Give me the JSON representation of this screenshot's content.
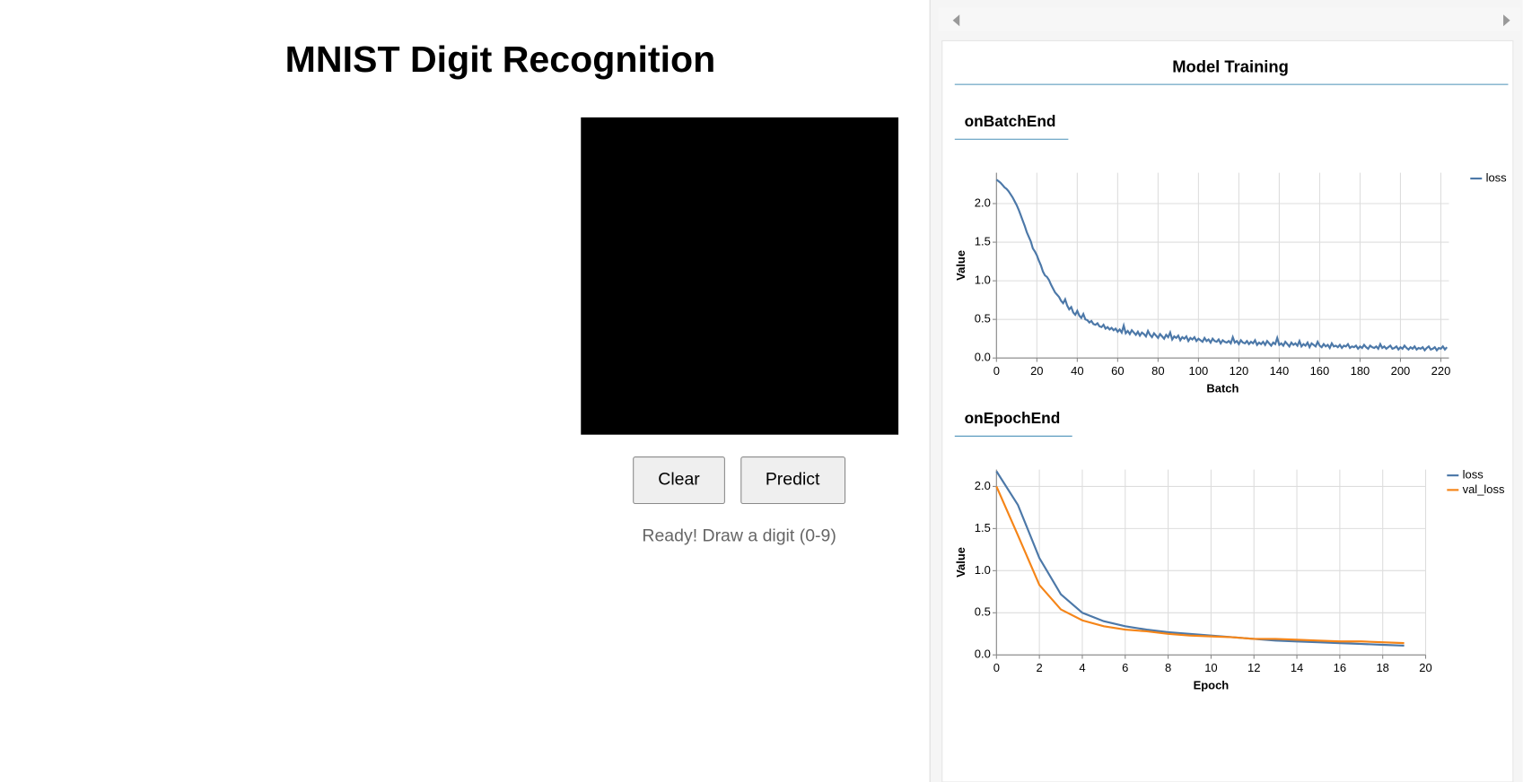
{
  "app": {
    "title": "MNIST Digit Recognition",
    "buttons": [
      "Clear",
      "Predict"
    ],
    "status": "Ready! Draw a digit (0-9)"
  },
  "panel": {
    "title": "Model Training",
    "tabs": [
      "onBatchEnd",
      "onEpochEnd"
    ]
  },
  "chart_data": [
    {
      "type": "line",
      "x_label": "Batch",
      "y_label": "Value",
      "xlim": [
        0,
        224
      ],
      "xticks": [
        0,
        20,
        40,
        60,
        80,
        100,
        120,
        140,
        160,
        180,
        200,
        220
      ],
      "ylim": [
        0,
        2.4
      ],
      "yticks": [
        {
          "value": 0,
          "label": "0.0"
        },
        {
          "value": 0.5,
          "label": "0.5"
        },
        {
          "value": 1,
          "label": "1.0"
        },
        {
          "value": 1.5,
          "label": "1.5"
        },
        {
          "value": 2,
          "label": "2.0"
        }
      ],
      "grid": true,
      "x": [
        0,
        1,
        2,
        3,
        4,
        5,
        6,
        7,
        8,
        9,
        10,
        11,
        12,
        13,
        14,
        15,
        16,
        17,
        18,
        19,
        20,
        21,
        22,
        23,
        24,
        25,
        26,
        27,
        28,
        29,
        30,
        31,
        32,
        33,
        34,
        35,
        36,
        37,
        38,
        39,
        40,
        41,
        42,
        43,
        44,
        45,
        46,
        47,
        48,
        49,
        50,
        51,
        52,
        53,
        54,
        55,
        56,
        57,
        58,
        59,
        60,
        61,
        62,
        63,
        64,
        65,
        66,
        67,
        68,
        69,
        70,
        71,
        72,
        73,
        74,
        75,
        76,
        77,
        78,
        79,
        80,
        81,
        82,
        83,
        84,
        85,
        86,
        87,
        88,
        89,
        90,
        91,
        92,
        93,
        94,
        95,
        96,
        97,
        98,
        99,
        100,
        101,
        102,
        103,
        104,
        105,
        106,
        107,
        108,
        109,
        110,
        111,
        112,
        113,
        114,
        115,
        116,
        117,
        118,
        119,
        120,
        121,
        122,
        123,
        124,
        125,
        126,
        127,
        128,
        129,
        130,
        131,
        132,
        133,
        134,
        135,
        136,
        137,
        138,
        139,
        140,
        141,
        142,
        143,
        144,
        145,
        146,
        147,
        148,
        149,
        150,
        151,
        152,
        153,
        154,
        155,
        156,
        157,
        158,
        159,
        160,
        161,
        162,
        163,
        164,
        165,
        166,
        167,
        168,
        169,
        170,
        171,
        172,
        173,
        174,
        175,
        176,
        177,
        178,
        179,
        180,
        181,
        182,
        183,
        184,
        185,
        186,
        187,
        188,
        189,
        190,
        191,
        192,
        193,
        194,
        195,
        196,
        197,
        198,
        199,
        200,
        201,
        202,
        203,
        204,
        205,
        206,
        207,
        208,
        209,
        210,
        211,
        212,
        213,
        214,
        215,
        216,
        217,
        218,
        219,
        220,
        221,
        222,
        223
      ],
      "series": [
        {
          "name": "loss",
          "color": "#4c78a8",
          "values": [
            2.31,
            2.29,
            2.27,
            2.24,
            2.21,
            2.19,
            2.16,
            2.12,
            2.08,
            2.03,
            1.98,
            1.92,
            1.85,
            1.78,
            1.71,
            1.63,
            1.57,
            1.51,
            1.42,
            1.38,
            1.33,
            1.26,
            1.2,
            1.12,
            1.07,
            1.05,
            1.01,
            0.95,
            0.9,
            0.85,
            0.82,
            0.79,
            0.74,
            0.71,
            0.76,
            0.68,
            0.63,
            0.66,
            0.59,
            0.56,
            0.61,
            0.55,
            0.52,
            0.57,
            0.5,
            0.49,
            0.46,
            0.48,
            0.44,
            0.43,
            0.45,
            0.41,
            0.4,
            0.43,
            0.38,
            0.4,
            0.37,
            0.39,
            0.36,
            0.38,
            0.34,
            0.37,
            0.33,
            0.42,
            0.32,
            0.35,
            0.31,
            0.36,
            0.33,
            0.3,
            0.34,
            0.29,
            0.33,
            0.31,
            0.28,
            0.35,
            0.3,
            0.27,
            0.32,
            0.29,
            0.26,
            0.31,
            0.28,
            0.25,
            0.3,
            0.27,
            0.33,
            0.24,
            0.28,
            0.26,
            0.29,
            0.23,
            0.27,
            0.25,
            0.28,
            0.22,
            0.26,
            0.24,
            0.27,
            0.22,
            0.25,
            0.23,
            0.21,
            0.26,
            0.22,
            0.24,
            0.2,
            0.25,
            0.22,
            0.21,
            0.24,
            0.19,
            0.23,
            0.21,
            0.2,
            0.22,
            0.19,
            0.27,
            0.2,
            0.22,
            0.18,
            0.23,
            0.2,
            0.19,
            0.22,
            0.18,
            0.21,
            0.19,
            0.23,
            0.17,
            0.2,
            0.18,
            0.21,
            0.17,
            0.22,
            0.19,
            0.16,
            0.2,
            0.18,
            0.26,
            0.17,
            0.19,
            0.16,
            0.21,
            0.18,
            0.15,
            0.2,
            0.17,
            0.19,
            0.16,
            0.22,
            0.15,
            0.18,
            0.16,
            0.2,
            0.14,
            0.19,
            0.17,
            0.15,
            0.21,
            0.16,
            0.14,
            0.18,
            0.15,
            0.17,
            0.13,
            0.19,
            0.15,
            0.16,
            0.14,
            0.17,
            0.13,
            0.16,
            0.15,
            0.18,
            0.13,
            0.15,
            0.14,
            0.16,
            0.12,
            0.15,
            0.13,
            0.17,
            0.14,
            0.12,
            0.16,
            0.14,
            0.13,
            0.15,
            0.12,
            0.18,
            0.13,
            0.15,
            0.12,
            0.14,
            0.16,
            0.12,
            0.13,
            0.15,
            0.11,
            0.14,
            0.12,
            0.16,
            0.13,
            0.11,
            0.14,
            0.12,
            0.15,
            0.11,
            0.13,
            0.12,
            0.14,
            0.1,
            0.13,
            0.15,
            0.11,
            0.12,
            0.14,
            0.1,
            0.13,
            0.12,
            0.15,
            0.11,
            0.14
          ]
        }
      ]
    },
    {
      "type": "line",
      "x_label": "Epoch",
      "y_label": "Value",
      "xlim": [
        0,
        20
      ],
      "xticks": [
        0,
        2,
        4,
        6,
        8,
        10,
        12,
        14,
        16,
        18,
        20
      ],
      "ylim": [
        0,
        2.2
      ],
      "yticks": [
        {
          "value": 0,
          "label": "0.0"
        },
        {
          "value": 0.5,
          "label": "0.5"
        },
        {
          "value": 1,
          "label": "1.0"
        },
        {
          "value": 1.5,
          "label": "1.5"
        },
        {
          "value": 2,
          "label": "2.0"
        }
      ],
      "grid": true,
      "x": [
        0,
        1,
        2,
        3,
        4,
        5,
        6,
        7,
        8,
        9,
        10,
        11,
        12,
        13,
        14,
        15,
        16,
        17,
        18,
        19
      ],
      "series": [
        {
          "name": "loss",
          "color": "#4c78a8",
          "values": [
            2.18,
            1.78,
            1.15,
            0.72,
            0.5,
            0.4,
            0.34,
            0.3,
            0.27,
            0.25,
            0.23,
            0.21,
            0.19,
            0.17,
            0.16,
            0.15,
            0.14,
            0.13,
            0.12,
            0.11
          ]
        },
        {
          "name": "val_loss",
          "color": "#f58518",
          "values": [
            2.0,
            1.42,
            0.83,
            0.54,
            0.41,
            0.34,
            0.3,
            0.28,
            0.25,
            0.23,
            0.22,
            0.21,
            0.19,
            0.19,
            0.18,
            0.17,
            0.16,
            0.16,
            0.15,
            0.14
          ]
        }
      ]
    }
  ]
}
